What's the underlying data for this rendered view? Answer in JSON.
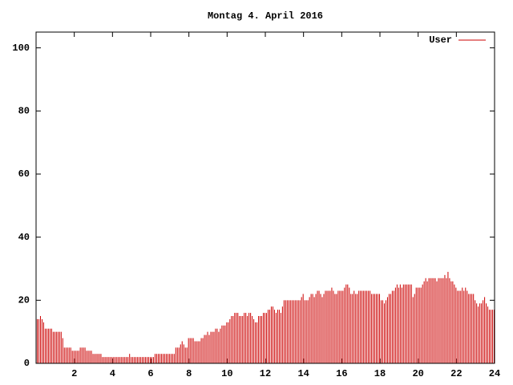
{
  "chart_data": {
    "type": "impulse",
    "title": "Montag 4. April 2016",
    "xlim": [
      0,
      24
    ],
    "xticks": [
      2,
      4,
      6,
      8,
      10,
      12,
      14,
      16,
      18,
      20,
      22,
      24
    ],
    "ylim": [
      0,
      105
    ],
    "yticks": [
      0,
      20,
      40,
      60,
      80,
      100
    ],
    "legend": "top-right",
    "series": [
      {
        "name": "User",
        "color": "#cc0000",
        "values": [
          14,
          14,
          15,
          14,
          13,
          11,
          11,
          11,
          11,
          11,
          10,
          10,
          10,
          10,
          10,
          10,
          8,
          5,
          5,
          5,
          5,
          5,
          4,
          4,
          4,
          4,
          4,
          5,
          5,
          5,
          5,
          4,
          4,
          4,
          4,
          3,
          3,
          3,
          3,
          3,
          3,
          2,
          2,
          2,
          2,
          2,
          2,
          2,
          2,
          2,
          2,
          2,
          2,
          2,
          2,
          2,
          2,
          2,
          3,
          2,
          2,
          2,
          2,
          2,
          2,
          2,
          2,
          2,
          2,
          2,
          2,
          2,
          2,
          2,
          3,
          3,
          3,
          3,
          3,
          3,
          3,
          3,
          3,
          3,
          3,
          3,
          3,
          5,
          5,
          5,
          6,
          7,
          6,
          5,
          5,
          8,
          8,
          8,
          8,
          7,
          7,
          7,
          7,
          8,
          8,
          9,
          9,
          10,
          9,
          10,
          10,
          10,
          11,
          11,
          10,
          11,
          12,
          12,
          12,
          13,
          13,
          14,
          15,
          15,
          16,
          16,
          16,
          15,
          15,
          15,
          16,
          16,
          15,
          16,
          16,
          15,
          14,
          13,
          13,
          15,
          15,
          15,
          16,
          16,
          16,
          17,
          17,
          18,
          18,
          17,
          16,
          17,
          17,
          16,
          18,
          20,
          20,
          20,
          20,
          20,
          20,
          20,
          20,
          20,
          20,
          20,
          21,
          22,
          20,
          20,
          20,
          21,
          22,
          22,
          21,
          22,
          23,
          23,
          22,
          21,
          22,
          23,
          23,
          23,
          23,
          24,
          23,
          22,
          22,
          23,
          23,
          23,
          23,
          24,
          25,
          25,
          24,
          22,
          22,
          23,
          22,
          22,
          23,
          23,
          23,
          23,
          23,
          23,
          23,
          23,
          22,
          22,
          22,
          22,
          22,
          22,
          20,
          20,
          19,
          20,
          21,
          22,
          22,
          23,
          23,
          24,
          25,
          24,
          25,
          24,
          25,
          25,
          25,
          25,
          25,
          25,
          21,
          22,
          24,
          24,
          24,
          24,
          25,
          26,
          27,
          26,
          27,
          27,
          27,
          27,
          27,
          26,
          27,
          27,
          27,
          27,
          28,
          27,
          29,
          27,
          26,
          26,
          25,
          24,
          23,
          23,
          23,
          24,
          23,
          24,
          23,
          22,
          22,
          22,
          22,
          20,
          19,
          18,
          19,
          19,
          20,
          21,
          19,
          18,
          17,
          17,
          17,
          17
        ]
      }
    ]
  }
}
